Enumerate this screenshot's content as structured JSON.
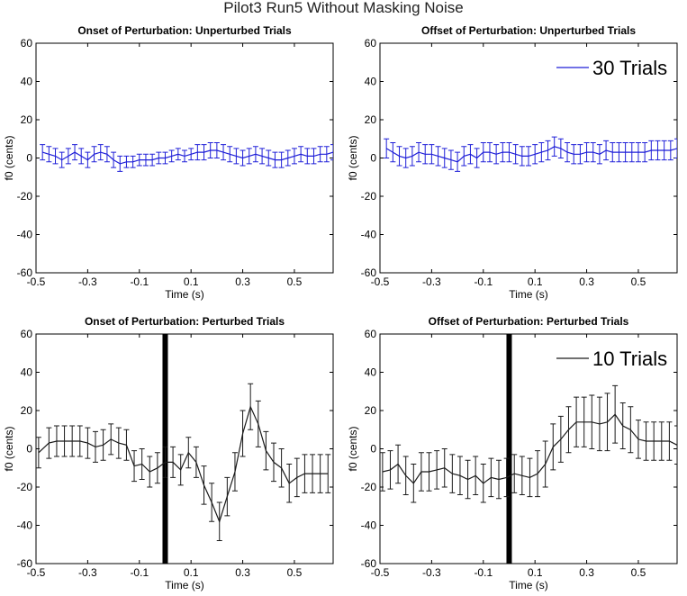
{
  "figure_title": "Pilot3 Run5 Without Masking Noise",
  "colors": {
    "blue": "#1f1fd8",
    "black": "#1a1a1a"
  },
  "chart_data": [
    {
      "type": "line",
      "title": "Onset of Perturbation: Unperturbed Trials",
      "xlabel": "Time (s)",
      "ylabel": "f0 (cents)",
      "xlim": [
        -0.5,
        0.65
      ],
      "ylim": [
        -60,
        60
      ],
      "xticks": [
        -0.5,
        -0.3,
        -0.1,
        0.1,
        0.3,
        0.5
      ],
      "yticks": [
        -60,
        -40,
        -20,
        0,
        20,
        40,
        60
      ],
      "color": "blue",
      "legend": "",
      "perturbation_marker": null,
      "x": [
        -0.475,
        -0.45,
        -0.425,
        -0.4,
        -0.375,
        -0.35,
        -0.325,
        -0.3,
        -0.275,
        -0.25,
        -0.225,
        -0.2,
        -0.175,
        -0.15,
        -0.125,
        -0.1,
        -0.075,
        -0.05,
        -0.025,
        0,
        0.025,
        0.05,
        0.075,
        0.1,
        0.125,
        0.15,
        0.175,
        0.2,
        0.225,
        0.25,
        0.275,
        0.3,
        0.325,
        0.35,
        0.375,
        0.4,
        0.425,
        0.45,
        0.475,
        0.5,
        0.525,
        0.55,
        0.575,
        0.6,
        0.625,
        0.65
      ],
      "y": [
        3,
        2,
        1,
        -1,
        1,
        3,
        1,
        -1,
        2,
        3,
        2,
        -1,
        -3,
        -2,
        -2,
        -1,
        -1,
        -1,
        0,
        0,
        1,
        2,
        1,
        2,
        3,
        3,
        4,
        4,
        3,
        2,
        1,
        0,
        1,
        2,
        1,
        0,
        -1,
        -1,
        0,
        1,
        2,
        1,
        1,
        2,
        2,
        3
      ],
      "err": [
        4,
        4,
        4,
        4,
        4,
        4,
        4,
        4,
        4,
        4,
        4,
        4,
        4,
        3,
        3,
        3,
        3,
        3,
        3,
        3,
        3,
        3,
        3,
        3,
        4,
        4,
        4,
        4,
        4,
        4,
        4,
        4,
        4,
        4,
        4,
        4,
        4,
        4,
        4,
        4,
        4,
        4,
        4,
        4,
        4,
        4
      ]
    },
    {
      "type": "line",
      "title": "Offset of Perturbation: Unperturbed Trials",
      "xlabel": "Time (s)",
      "ylabel": "f0 (cents)",
      "xlim": [
        -0.5,
        0.65
      ],
      "ylim": [
        -60,
        60
      ],
      "xticks": [
        -0.5,
        -0.3,
        -0.1,
        0.1,
        0.3,
        0.5
      ],
      "yticks": [
        -60,
        -40,
        -20,
        0,
        20,
        40,
        60
      ],
      "color": "blue",
      "legend": "30 Trials",
      "perturbation_marker": null,
      "x": [
        -0.475,
        -0.45,
        -0.425,
        -0.4,
        -0.375,
        -0.35,
        -0.325,
        -0.3,
        -0.275,
        -0.25,
        -0.225,
        -0.2,
        -0.175,
        -0.15,
        -0.125,
        -0.1,
        -0.075,
        -0.05,
        -0.025,
        0,
        0.025,
        0.05,
        0.075,
        0.1,
        0.125,
        0.15,
        0.175,
        0.2,
        0.225,
        0.25,
        0.275,
        0.3,
        0.325,
        0.35,
        0.375,
        0.4,
        0.425,
        0.45,
        0.475,
        0.5,
        0.525,
        0.55,
        0.575,
        0.6,
        0.625,
        0.65
      ],
      "y": [
        5,
        3,
        1,
        0,
        1,
        3,
        2,
        2,
        1,
        0,
        -1,
        -2,
        1,
        2,
        0,
        3,
        3,
        2,
        3,
        3,
        2,
        1,
        1,
        2,
        3,
        4,
        6,
        5,
        3,
        2,
        2,
        3,
        3,
        2,
        4,
        3,
        3,
        3,
        3,
        3,
        3,
        4,
        4,
        4,
        4,
        5
      ],
      "err": [
        5,
        5,
        5,
        5,
        5,
        5,
        5,
        5,
        5,
        5,
        5,
        5,
        5,
        5,
        5,
        5,
        5,
        5,
        5,
        5,
        5,
        5,
        5,
        5,
        5,
        5,
        5,
        5,
        5,
        5,
        5,
        5,
        5,
        5,
        5,
        5,
        5,
        5,
        5,
        5,
        5,
        5,
        5,
        5,
        5,
        5
      ]
    },
    {
      "type": "line",
      "title": "Onset of Perturbation: Perturbed Trials",
      "xlabel": "Time (s)",
      "ylabel": "f0 (cents)",
      "xlim": [
        -0.5,
        0.65
      ],
      "ylim": [
        -60,
        60
      ],
      "xticks": [
        -0.5,
        -0.3,
        -0.1,
        0.1,
        0.3,
        0.5
      ],
      "yticks": [
        -60,
        -40,
        -20,
        0,
        20,
        40,
        60
      ],
      "color": "black",
      "legend": "",
      "perturbation_marker": 0,
      "x": [
        -0.49,
        -0.45,
        -0.42,
        -0.39,
        -0.36,
        -0.33,
        -0.3,
        -0.27,
        -0.24,
        -0.21,
        -0.18,
        -0.15,
        -0.12,
        -0.09,
        -0.06,
        -0.03,
        0,
        0.03,
        0.06,
        0.09,
        0.12,
        0.15,
        0.18,
        0.21,
        0.24,
        0.27,
        0.3,
        0.33,
        0.36,
        0.39,
        0.42,
        0.45,
        0.48,
        0.51,
        0.54,
        0.57,
        0.6,
        0.63
      ],
      "y": [
        -2,
        3,
        4,
        4,
        4,
        4,
        3,
        1,
        2,
        5,
        3,
        2,
        -9,
        -8,
        -12,
        -10,
        -7,
        -7,
        -11,
        -2,
        -7,
        -19,
        -28,
        -38,
        -25,
        -12,
        8,
        22,
        13,
        -1,
        -7,
        -10,
        -18,
        -15,
        -13,
        -13,
        -13,
        -13
      ],
      "err": [
        8,
        8,
        8,
        8,
        8,
        8,
        8,
        8,
        8,
        8,
        8,
        8,
        8,
        8,
        8,
        8,
        8,
        8,
        8,
        8,
        8,
        10,
        10,
        10,
        10,
        10,
        12,
        12,
        12,
        10,
        10,
        10,
        10,
        10,
        10,
        10,
        10,
        10
      ]
    },
    {
      "type": "line",
      "title": "Offset of Perturbation: Perturbed Trials",
      "xlabel": "Time (s)",
      "ylabel": "f0 (cents)",
      "xlim": [
        -0.5,
        0.65
      ],
      "ylim": [
        -60,
        60
      ],
      "xticks": [
        -0.5,
        -0.3,
        -0.1,
        0.1,
        0.3,
        0.5
      ],
      "yticks": [
        -60,
        -40,
        -20,
        0,
        20,
        40,
        60
      ],
      "color": "black",
      "legend": "10 Trials",
      "perturbation_marker": 0,
      "x": [
        -0.49,
        -0.46,
        -0.43,
        -0.4,
        -0.37,
        -0.34,
        -0.31,
        -0.28,
        -0.25,
        -0.22,
        -0.19,
        -0.16,
        -0.13,
        -0.1,
        -0.07,
        -0.04,
        -0.01,
        0.02,
        0.05,
        0.08,
        0.11,
        0.14,
        0.17,
        0.2,
        0.23,
        0.26,
        0.29,
        0.32,
        0.35,
        0.38,
        0.41,
        0.44,
        0.47,
        0.5,
        0.53,
        0.56,
        0.59,
        0.62,
        0.65
      ],
      "y": [
        -12,
        -11,
        -8,
        -14,
        -18,
        -12,
        -12,
        -11,
        -10,
        -13,
        -14,
        -16,
        -14,
        -18,
        -15,
        -16,
        -15,
        -13,
        -14,
        -15,
        -13,
        -8,
        1,
        5,
        10,
        14,
        14,
        14,
        13,
        14,
        18,
        12,
        10,
        5,
        4,
        4,
        4,
        4,
        2
      ],
      "err": [
        10,
        10,
        10,
        10,
        10,
        10,
        10,
        10,
        10,
        10,
        10,
        10,
        10,
        10,
        10,
        10,
        10,
        10,
        10,
        10,
        12,
        12,
        12,
        12,
        12,
        13,
        13,
        14,
        14,
        15,
        15,
        12,
        12,
        10,
        10,
        10,
        10,
        10,
        10
      ]
    }
  ]
}
